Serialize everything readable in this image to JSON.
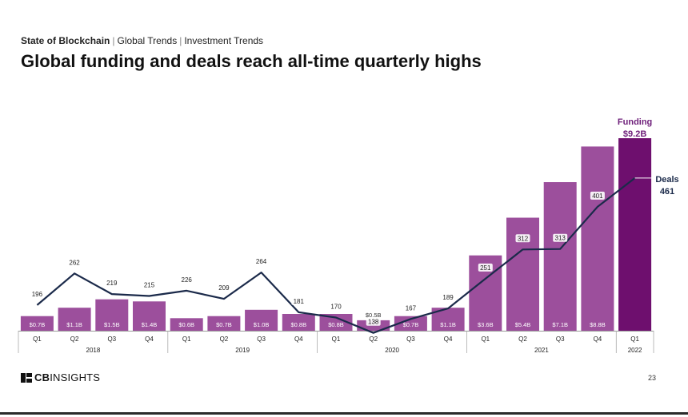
{
  "header": {
    "breadcrumb": [
      "State of Blockchain",
      "Global Trends",
      "Investment Trends"
    ],
    "title": "Global funding and deals reach all-time quarterly highs"
  },
  "footer": {
    "logo_bold": "CB",
    "logo_rest": "INSIGHTS",
    "page_number": "23"
  },
  "colors": {
    "bar": "#9c4f9c",
    "bar_highlight": "#6e0f6e",
    "line": "#1b2a4a",
    "funding_label": "#6e1f7a",
    "deals_label": "#1b2a4a"
  },
  "chart_data": {
    "type": "bar",
    "categories": [
      "Q1",
      "Q2",
      "Q3",
      "Q4",
      "Q1",
      "Q2",
      "Q3",
      "Q4",
      "Q1",
      "Q2",
      "Q3",
      "Q4",
      "Q1",
      "Q2",
      "Q3",
      "Q4",
      "Q1"
    ],
    "years": [
      {
        "label": "2018",
        "span": 4
      },
      {
        "label": "2019",
        "span": 4
      },
      {
        "label": "2020",
        "span": 4
      },
      {
        "label": "2021",
        "span": 4
      },
      {
        "label": "2022",
        "span": 1
      }
    ],
    "series": [
      {
        "name": "Funding",
        "type": "bar",
        "values": [
          0.7,
          1.1,
          1.5,
          1.4,
          0.6,
          0.7,
          1.0,
          0.8,
          0.8,
          0.5,
          0.7,
          1.1,
          3.6,
          5.4,
          7.1,
          8.8,
          9.2
        ],
        "labels": [
          "$0.7B",
          "$1.1B",
          "$1.5B",
          "$1.4B",
          "$0.6B",
          "$0.7B",
          "$1.0B",
          "$0.8B",
          "$0.8B",
          "$0.5B",
          "$0.7B",
          "$1.1B",
          "$3.6B",
          "$5.4B",
          "$7.1B",
          "$8.8B",
          ""
        ]
      },
      {
        "name": "Deals",
        "type": "line",
        "values": [
          196,
          262,
          219,
          215,
          226,
          209,
          264,
          181,
          170,
          138,
          167,
          189,
          251,
          312,
          313,
          401,
          461
        ],
        "labels": [
          "196",
          "262",
          "219",
          "215",
          "226",
          "209",
          "264",
          "181",
          "170",
          "138",
          "167",
          "189",
          "251",
          "312",
          "313",
          "401",
          ""
        ]
      }
    ],
    "callouts": {
      "funding_title": "Funding",
      "funding_value": "$9.2B",
      "deals_title": "Deals",
      "deals_value": "461"
    }
  }
}
